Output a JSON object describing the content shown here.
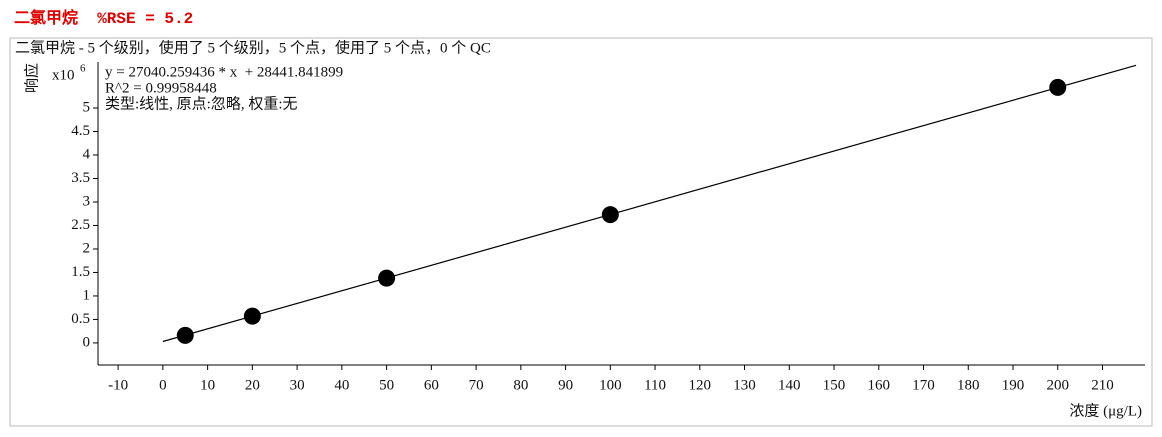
{
  "chart_data": {
    "type": "scatter",
    "title": "二氯甲烷  %RSE = 5.2",
    "subtitle": "二氯甲烷 - 5 个级别，使用了 5 个级别，5 个点，使用了 5 个点，0 个 QC",
    "ylabel": "响应",
    "y_scale_base": "x10",
    "y_scale_exponent": "6",
    "xlabel": "浓度 (μg/L)",
    "annotations": [
      "y = 27040.259436 * x  + 28441.841899",
      "R^2 = 0.99958448",
      "类型:线性, 原点:忽略, 权重:无"
    ],
    "x": [
      5,
      20,
      50,
      100,
      200
    ],
    "values": [
      0.16,
      0.57,
      1.38,
      2.73,
      5.44
    ],
    "color": "#000000",
    "fit": {
      "x": [
        0,
        217.5
      ],
      "values": [
        0.03,
        5.91
      ],
      "color": "#000000"
    },
    "xlim": [
      -14.5,
      219.5
    ],
    "ylim": [
      -0.47,
      5.98
    ],
    "xticks": [
      -10,
      0,
      10,
      20,
      30,
      40,
      50,
      60,
      70,
      80,
      90,
      100,
      110,
      120,
      130,
      140,
      150,
      160,
      170,
      180,
      190,
      200,
      210
    ],
    "yticks": [
      0,
      0.5,
      1,
      1.5,
      2,
      2.5,
      3,
      3.5,
      4,
      4.5,
      5
    ]
  }
}
